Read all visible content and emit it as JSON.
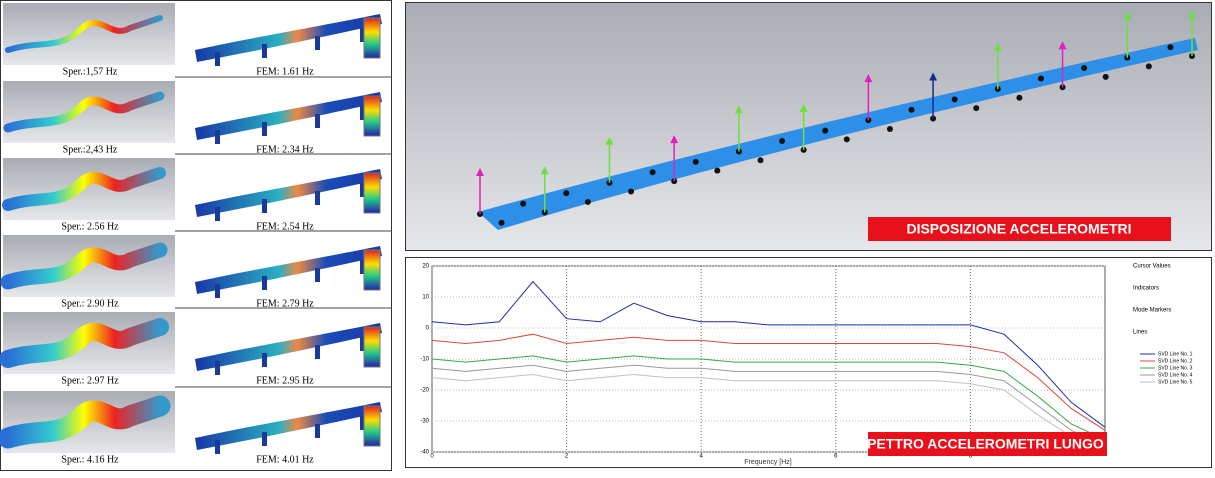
{
  "modes": [
    {
      "experimental": "Sper.:1,57 Hz",
      "fem": "FEM: 1.61 Hz"
    },
    {
      "experimental": "Sper.:2,43 Hz",
      "fem": "FEM: 2.34 Hz"
    },
    {
      "experimental": "Sper.: 2.56 Hz",
      "fem": "FEM: 2.54 Hz"
    },
    {
      "experimental": "Sper.: 2.90 Hz",
      "fem": "FEM: 2.79 Hz"
    },
    {
      "experimental": "Sper.: 2.97 Hz",
      "fem": "FEM: 2.95 Hz"
    },
    {
      "experimental": "Sper.: 4.16 Hz",
      "fem": "FEM: 4.01 Hz"
    }
  ],
  "layout_panel": {
    "label": "DISPOSIZIONE ACCELEROMETRI"
  },
  "spectrum": {
    "label": "SPETTRO ACCELEROMETRI LUNGO Z",
    "x_label": "Frequency [Hz]",
    "xlim": [
      0,
      10
    ],
    "ylim": [
      -40,
      20
    ],
    "xticks": [
      0,
      2,
      4,
      6,
      8
    ],
    "yticks": [
      20,
      10,
      0,
      -10,
      -20,
      -30,
      -40
    ],
    "x": [
      0,
      0.5,
      1,
      1.5,
      2,
      2.5,
      3,
      3.5,
      4,
      4.5,
      5,
      5.5,
      6,
      6.5,
      7,
      7.5,
      8,
      8.5,
      9,
      9.5,
      10
    ],
    "legend_headings": [
      "Cursor Values",
      "Indicators",
      "Mode Markers",
      "Lines"
    ],
    "series": [
      {
        "name": "SVD Line No. 1",
        "color": "#1a2fa8",
        "values": [
          2,
          1,
          2,
          15,
          3,
          2,
          8,
          4,
          2,
          2,
          1,
          1,
          1,
          1,
          1,
          1,
          1,
          -2,
          -12,
          -24,
          -32
        ]
      },
      {
        "name": "SVD Line No. 2",
        "color": "#e0463a",
        "values": [
          -4,
          -5,
          -4,
          -2,
          -5,
          -4,
          -3,
          -4,
          -4,
          -5,
          -5,
          -5,
          -5,
          -5,
          -5,
          -5,
          -6,
          -8,
          -16,
          -26,
          -33
        ]
      },
      {
        "name": "SVD Line No. 3",
        "color": "#3aa84a",
        "values": [
          -10,
          -11,
          -10,
          -9,
          -11,
          -10,
          -9,
          -10,
          -10,
          -11,
          -11,
          -11,
          -11,
          -11,
          -11,
          -11,
          -12,
          -14,
          -22,
          -31,
          -36
        ]
      },
      {
        "name": "SVD Line No. 4",
        "color": "#9a9a9a",
        "values": [
          -13,
          -14,
          -13,
          -12,
          -14,
          -13,
          -12,
          -13,
          -13,
          -14,
          -14,
          -14,
          -14,
          -14,
          -14,
          -14,
          -15,
          -17,
          -25,
          -33,
          -38
        ]
      },
      {
        "name": "SVD Line No. 5",
        "color": "#c2c2c2",
        "values": [
          -16,
          -17,
          -16,
          -15,
          -17,
          -16,
          -15,
          -16,
          -16,
          -17,
          -17,
          -17,
          -17,
          -17,
          -17,
          -17,
          -18,
          -20,
          -28,
          -35,
          -39
        ]
      }
    ]
  }
}
